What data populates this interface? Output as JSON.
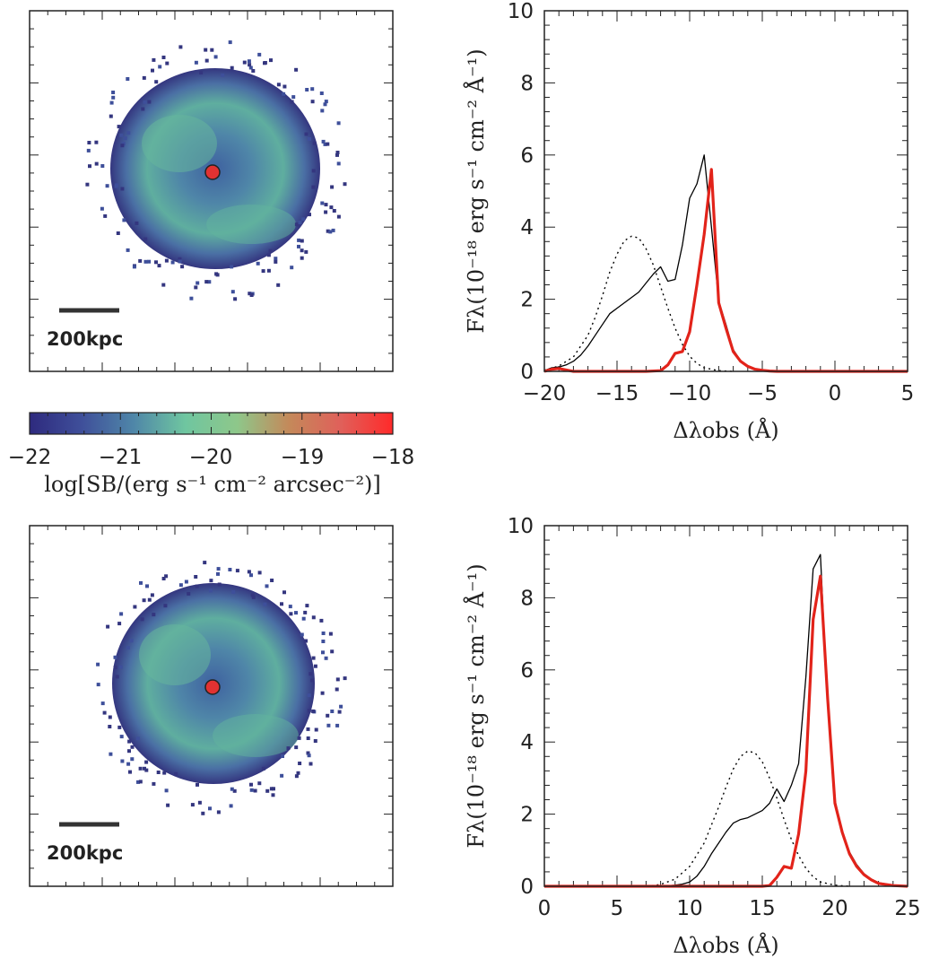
{
  "panels": [
    {
      "id": "map-top",
      "scalebar_label": "200kpc"
    },
    {
      "id": "map-bottom",
      "scalebar_label": "200kpc"
    }
  ],
  "colorbar": {
    "label": "log[SB/(erg s⁻¹ cm⁻² arcsec⁻²)]",
    "ticks": [
      "−22",
      "−21",
      "−20",
      "−19",
      "−18"
    ],
    "range": [
      -22,
      -18
    ],
    "colors": [
      "#2e2a7e",
      "#3f4f9a",
      "#4f86a8",
      "#6fc6a0",
      "#8ec78a",
      "#c4895a",
      "#e0605a",
      "#ff2a2a"
    ]
  },
  "chart_data": [
    {
      "type": "line",
      "id": "spectrum-top",
      "xlabel": "Δλobs (Å)",
      "ylabel": "Fλ(10⁻¹⁸ erg s⁻¹ cm⁻² Å⁻¹)",
      "xlim": [
        -20,
        5
      ],
      "ylim": [
        0,
        10
      ],
      "xticks": [
        "−20",
        "−15",
        "−10",
        "−5",
        "0",
        "5"
      ],
      "xtick_values": [
        -20,
        -15,
        -10,
        -5,
        0,
        5
      ],
      "yticks": [
        "0",
        "2",
        "4",
        "6",
        "8",
        "10"
      ],
      "ytick_values": [
        0,
        2,
        4,
        6,
        8,
        10
      ],
      "series": [
        {
          "style": "thin-black",
          "color": "#000000",
          "x": [
            -20,
            -19.5,
            -19,
            -18.5,
            -18,
            -17.5,
            -17,
            -16.5,
            -16,
            -15.5,
            -15,
            -14.5,
            -14,
            -13.5,
            -13,
            -12.5,
            -12,
            -11.5,
            -11,
            -10.5,
            -10,
            -9.5,
            -9,
            -8.5,
            -8,
            -7.5,
            -7,
            -6.5,
            -6,
            -5.5,
            -5,
            -4.5,
            -4,
            -3,
            -2,
            0,
            5
          ],
          "y": [
            0.02,
            0.1,
            0.12,
            0.18,
            0.28,
            0.45,
            0.7,
            1.0,
            1.3,
            1.6,
            1.75,
            1.9,
            2.05,
            2.2,
            2.45,
            2.7,
            2.9,
            2.5,
            2.55,
            3.5,
            4.8,
            5.2,
            6.0,
            4.0,
            1.95,
            1.3,
            0.6,
            0.3,
            0.15,
            0.06,
            0.04,
            0.02,
            0.01,
            0.01,
            0.0,
            0.0,
            0.0
          ]
        },
        {
          "style": "dotted",
          "color": "#000000",
          "x": [
            -20,
            -19,
            -18,
            -17,
            -16.5,
            -16,
            -15.5,
            -15,
            -14.5,
            -14,
            -13.5,
            -13,
            -12.5,
            -12,
            -11.5,
            -11,
            -10.5,
            -10,
            -9.5,
            -9,
            -8,
            -7
          ],
          "y": [
            0.03,
            0.15,
            0.4,
            1.0,
            1.5,
            2.1,
            2.75,
            3.25,
            3.62,
            3.75,
            3.7,
            3.4,
            2.95,
            2.35,
            1.75,
            1.2,
            0.75,
            0.42,
            0.22,
            0.1,
            0.02,
            0.0
          ]
        },
        {
          "style": "thick-red",
          "color": "#e2231a",
          "x": [
            -20,
            -19.5,
            -19,
            -18,
            -17,
            -16,
            -15,
            -14,
            -13,
            -12,
            -11.5,
            -11,
            -10.5,
            -10,
            -9.5,
            -9,
            -8.5,
            -8,
            -7.5,
            -7,
            -6.5,
            -6,
            -5.5,
            -5,
            -4.5,
            -4,
            -3,
            0,
            5
          ],
          "y": [
            0.0,
            0.06,
            0.08,
            0.0,
            0.0,
            0.0,
            0.0,
            0.0,
            0.0,
            0.02,
            0.18,
            0.5,
            0.55,
            1.1,
            2.4,
            3.8,
            5.6,
            1.9,
            1.2,
            0.55,
            0.28,
            0.14,
            0.06,
            0.03,
            0.01,
            0.0,
            0.0,
            0.0,
            0.0
          ]
        }
      ]
    },
    {
      "type": "line",
      "id": "spectrum-bottom",
      "xlabel": "Δλobs (Å)",
      "ylabel": "Fλ(10⁻¹⁸ erg s⁻¹ cm⁻² Å⁻¹)",
      "xlim": [
        0,
        25
      ],
      "ylim": [
        0,
        10
      ],
      "xticks": [
        "0",
        "5",
        "10",
        "15",
        "20",
        "25"
      ],
      "xtick_values": [
        0,
        5,
        10,
        15,
        20,
        25
      ],
      "yticks": [
        "0",
        "2",
        "4",
        "6",
        "8",
        "10"
      ],
      "ytick_values": [
        0,
        2,
        4,
        6,
        8,
        10
      ],
      "series": [
        {
          "style": "thin-black",
          "color": "#000000",
          "x": [
            0,
            5,
            8,
            9,
            9.5,
            10,
            10.5,
            11,
            11.5,
            12,
            12.5,
            13,
            13.5,
            14,
            14.5,
            15,
            15.5,
            16,
            16.5,
            17,
            17.5,
            18,
            18.5,
            19,
            19.5,
            20,
            20.5,
            21,
            21.5,
            22,
            22.5,
            23,
            24,
            25
          ],
          "y": [
            0.0,
            0.0,
            0.0,
            0.03,
            0.06,
            0.12,
            0.28,
            0.55,
            0.9,
            1.2,
            1.5,
            1.75,
            1.85,
            1.9,
            2.0,
            2.1,
            2.3,
            2.7,
            2.35,
            2.8,
            3.4,
            5.8,
            8.8,
            9.2,
            5.0,
            2.4,
            1.5,
            0.95,
            0.6,
            0.35,
            0.2,
            0.1,
            0.03,
            0.0
          ]
        },
        {
          "style": "dotted",
          "color": "#000000",
          "x": [
            7,
            8,
            9,
            10,
            11,
            12,
            12.5,
            13,
            13.5,
            14,
            14.5,
            15,
            15.5,
            16,
            16.5,
            17,
            17.5,
            18,
            18.5,
            19,
            20,
            21
          ],
          "y": [
            0.0,
            0.05,
            0.2,
            0.55,
            1.2,
            2.2,
            2.75,
            3.25,
            3.6,
            3.75,
            3.7,
            3.45,
            3.0,
            2.45,
            1.85,
            1.3,
            0.85,
            0.5,
            0.26,
            0.12,
            0.03,
            0.0
          ]
        },
        {
          "style": "thick-red",
          "color": "#e2231a",
          "x": [
            0,
            5,
            10,
            14,
            15,
            15.5,
            16,
            16.5,
            17,
            17.5,
            18,
            18.5,
            19,
            19.5,
            20,
            20.5,
            21,
            21.5,
            22,
            22.5,
            23,
            24,
            25
          ],
          "y": [
            0.0,
            0.0,
            0.0,
            0.0,
            0.0,
            0.02,
            0.25,
            0.55,
            0.5,
            1.45,
            3.2,
            7.4,
            8.6,
            5.2,
            2.3,
            1.5,
            0.9,
            0.55,
            0.32,
            0.18,
            0.08,
            0.02,
            0.0
          ]
        }
      ]
    }
  ]
}
